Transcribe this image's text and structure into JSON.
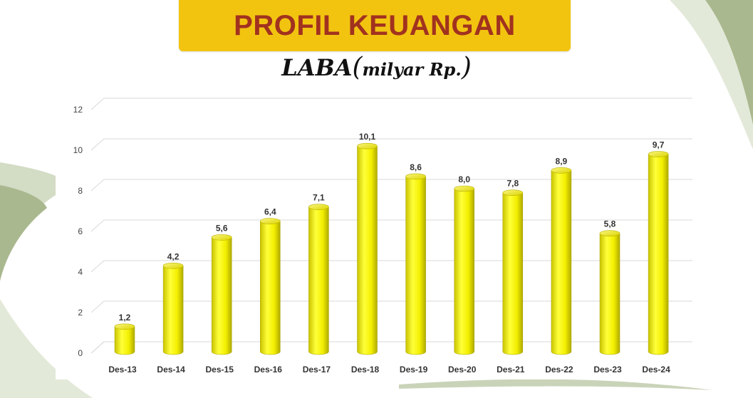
{
  "header": {
    "title": "PROFIL KEUANGAN",
    "subtitle_main": "LABA",
    "subtitle_open": "(",
    "subtitle_unit": "milyar Rp.",
    "subtitle_close": ")"
  },
  "colors": {
    "banner": "#f2c410",
    "title_text": "#a1321f",
    "bar": "#f5f200",
    "bar_dark": "#b9b200",
    "decor_green": "#a9b88e",
    "decor_light": "#e3e9d9"
  },
  "chart_data": {
    "type": "bar",
    "style": "3d-cylinder",
    "title": "",
    "xlabel": "",
    "ylabel": "",
    "categories": [
      "Des-13",
      "Des-14",
      "Des-15",
      "Des-16",
      "Des-17",
      "Des-18",
      "Des-19",
      "Des-20",
      "Des-21",
      "Des-22",
      "Des-23",
      "Des-24"
    ],
    "values": [
      1.2,
      4.2,
      5.6,
      6.4,
      7.1,
      10.1,
      8.6,
      8.0,
      7.8,
      8.9,
      5.8,
      9.7
    ],
    "data_labels": [
      "1,2",
      "4,2",
      "5,6",
      "6,4",
      "7,1",
      "10,1",
      "8,6",
      "8,0",
      "7,8",
      "8,9",
      "5,8",
      "9,7"
    ],
    "ylim": [
      0,
      12
    ],
    "yticks": [
      0,
      2,
      4,
      6,
      8,
      10,
      12
    ],
    "grid": true,
    "legend": "none"
  }
}
